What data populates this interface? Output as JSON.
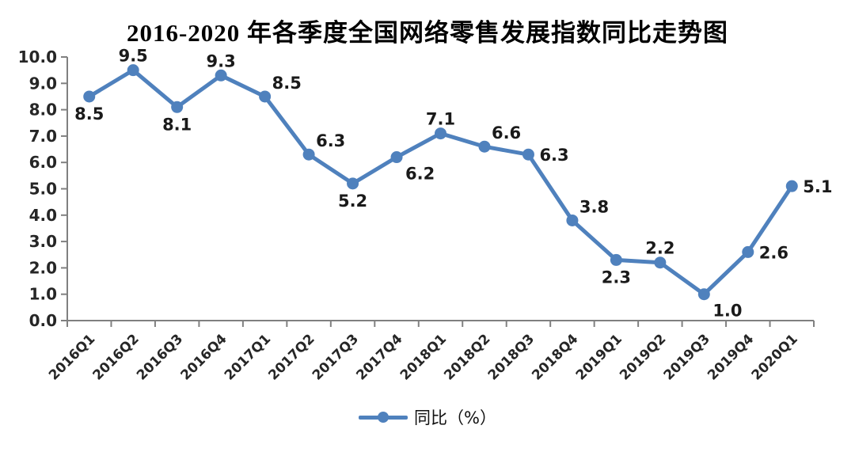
{
  "title": "2016-2020 年各季度全国网络零售发展指数同比走势图",
  "legend": {
    "label": "同比（%）"
  },
  "colors": {
    "line": "#4F81BD",
    "axis": "#808080",
    "tick_label": "#262626",
    "data_label": "#1a1a1a"
  },
  "chart_data": {
    "type": "line",
    "title": "2016-2020 年各季度全国网络零售发展指数同比走势图",
    "categories": [
      "2016Q1",
      "2016Q2",
      "2016Q3",
      "2016Q4",
      "2017Q1",
      "2017Q2",
      "2017Q3",
      "2017Q4",
      "2018Q1",
      "2018Q2",
      "2018Q3",
      "2018Q4",
      "2019Q1",
      "2019Q2",
      "2019Q3",
      "2019Q4",
      "2020Q1"
    ],
    "series": [
      {
        "name": "同比（%）",
        "values": [
          8.5,
          9.5,
          8.1,
          9.3,
          8.5,
          6.3,
          5.2,
          6.2,
          7.1,
          6.6,
          6.3,
          3.8,
          2.3,
          2.2,
          1.0,
          2.6,
          5.1
        ]
      }
    ],
    "xlabel": "",
    "ylabel": "",
    "ylim": [
      0,
      10
    ],
    "ytick_step": 1.0,
    "ytick_decimals": 1,
    "grid": false,
    "legend_position": "bottom",
    "data_labels_shown": true,
    "label_placements": [
      "below",
      "above",
      "below",
      "above",
      "above-right",
      "above-right",
      "below",
      "below-right",
      "above",
      "above-right",
      "right",
      "above-right",
      "below",
      "above",
      "below-right",
      "right",
      "right"
    ],
    "xtick_rotation_deg": -45
  }
}
